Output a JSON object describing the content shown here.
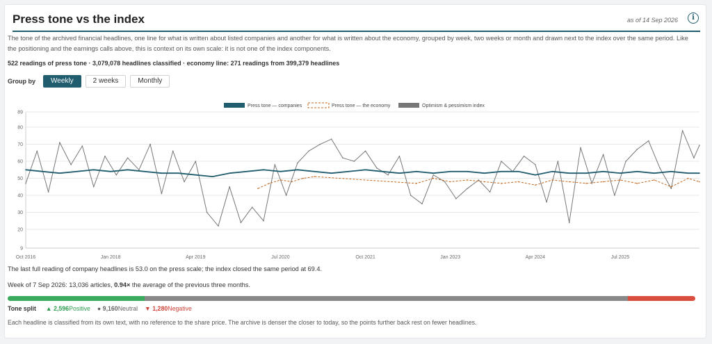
{
  "title": "Press tone vs the index",
  "as_of": "as of 14 Sep 2026",
  "description": "The tone of the archived financial headlines, one line for what is written about listed companies and another for what is written about the economy, grouped by week, two weeks or month and drawn next to the index over the same period. Like the positioning and the earnings calls above, this is context on its own scale: it is not one of the index components.",
  "stats": "522 readings of press tone · 3,079,078 headlines classified · economy line: 271 readings from 399,379 headlines",
  "group_by": {
    "label": "Group by",
    "options": [
      "Weekly",
      "2 weeks",
      "Monthly"
    ],
    "selected": "Weekly"
  },
  "summary": "The last full reading of company headlines is 53.0 on the press scale; the index closed the same period at 69.4.",
  "week": {
    "prefix": "Week of 7 Sep 2026: 13,036 articles, ",
    "ratio": "0.94×",
    "suffix": " the average of the previous three months."
  },
  "tone_split": {
    "label": "Tone split",
    "positive": {
      "icon": "triangle-up-icon",
      "count": "2,596",
      "label": "Positive",
      "value": 2596
    },
    "neutral": {
      "icon": "dot-icon",
      "count": "9,160",
      "label": "Neutral",
      "value": 9160
    },
    "negative": {
      "icon": "triangle-down-icon",
      "count": "1,280",
      "label": "Negative",
      "value": 1280
    }
  },
  "footnote": "Each headline is classified from its own text, with no reference to the share price. The archive is denser the closer to today, so the points further back rest on fewer headlines.",
  "colors": {
    "accent": "#1f5c6e",
    "companies": "#1f5c6e",
    "economy": "#c0651b",
    "index": "#777777",
    "positive": "#3aaa5c",
    "neutral": "#888888",
    "negative": "#d94d3f"
  },
  "chart_data": {
    "type": "line",
    "xlabel": "",
    "ylabel": "",
    "ylim": [
      9,
      89
    ],
    "yticks": [
      9,
      20,
      30,
      40,
      50,
      60,
      70,
      80,
      89
    ],
    "xlim": [
      "2016-10",
      "2026-09"
    ],
    "xticks": [
      {
        "label": "Oct 2016",
        "value": "2016-10"
      },
      {
        "label": "Jan 2018",
        "value": "2018-01"
      },
      {
        "label": "Apr 2019",
        "value": "2019-04"
      },
      {
        "label": "Jul 2020",
        "value": "2020-07"
      },
      {
        "label": "Oct 2021",
        "value": "2021-10"
      },
      {
        "label": "Jan 2023",
        "value": "2023-01"
      },
      {
        "label": "Apr 2024",
        "value": "2024-04"
      },
      {
        "label": "Jul 2025",
        "value": "2025-07"
      }
    ],
    "legend_position": "top-center",
    "grid": true,
    "series": [
      {
        "name": "Press tone — companies",
        "style": "solid",
        "x": [
          "2016-10",
          "2017-01",
          "2017-04",
          "2017-07",
          "2017-10",
          "2018-01",
          "2018-04",
          "2018-07",
          "2018-10",
          "2019-01",
          "2019-04",
          "2019-07",
          "2019-10",
          "2020-01",
          "2020-04",
          "2020-07",
          "2020-10",
          "2021-01",
          "2021-04",
          "2021-07",
          "2021-10",
          "2022-01",
          "2022-04",
          "2022-07",
          "2022-10",
          "2023-01",
          "2023-04",
          "2023-07",
          "2023-10",
          "2024-01",
          "2024-04",
          "2024-07",
          "2024-10",
          "2025-01",
          "2025-04",
          "2025-07",
          "2025-10",
          "2026-01",
          "2026-04",
          "2026-07",
          "2026-09"
        ],
        "y": [
          55,
          54,
          53,
          54,
          55,
          54,
          55,
          54,
          53,
          53,
          52,
          51,
          53,
          54,
          55,
          54,
          55,
          54,
          53,
          54,
          55,
          54,
          53,
          54,
          53,
          54,
          54,
          53,
          54,
          54,
          52,
          54,
          53,
          53,
          54,
          53,
          54,
          53,
          54,
          53,
          53
        ]
      },
      {
        "name": "Press tone — the economy",
        "style": "dashed",
        "x": [
          "2020-03",
          "2020-05",
          "2020-07",
          "2020-09",
          "2020-11",
          "2021-01",
          "2022-07",
          "2022-10",
          "2023-01",
          "2023-04",
          "2023-07",
          "2023-10",
          "2024-01",
          "2024-04",
          "2024-07",
          "2024-10",
          "2025-01",
          "2025-04",
          "2025-07",
          "2025-10",
          "2026-01",
          "2026-04",
          "2026-07",
          "2026-09"
        ],
        "y": [
          44,
          47,
          49,
          48,
          50,
          51,
          47,
          50,
          48,
          49,
          48,
          47,
          48,
          46,
          49,
          48,
          47,
          48,
          49,
          47,
          49,
          45,
          50,
          48
        ]
      },
      {
        "name": "Optimism & pessimism index",
        "style": "solid",
        "x": [
          "2016-10",
          "2016-12",
          "2017-02",
          "2017-04",
          "2017-06",
          "2017-08",
          "2017-10",
          "2017-12",
          "2018-02",
          "2018-04",
          "2018-06",
          "2018-08",
          "2018-10",
          "2018-12",
          "2019-02",
          "2019-04",
          "2019-06",
          "2019-08",
          "2019-10",
          "2019-12",
          "2020-02",
          "2020-04",
          "2020-06",
          "2020-08",
          "2020-10",
          "2020-12",
          "2021-02",
          "2021-04",
          "2021-06",
          "2021-08",
          "2021-10",
          "2021-12",
          "2022-02",
          "2022-04",
          "2022-06",
          "2022-08",
          "2022-10",
          "2022-12",
          "2023-02",
          "2023-04",
          "2023-06",
          "2023-08",
          "2023-10",
          "2023-12",
          "2024-02",
          "2024-04",
          "2024-06",
          "2024-08",
          "2024-10",
          "2024-12",
          "2025-02",
          "2025-04",
          "2025-06",
          "2025-08",
          "2025-10",
          "2025-12",
          "2026-02",
          "2026-04",
          "2026-06",
          "2026-08",
          "2026-09"
        ],
        "y": [
          47,
          66,
          42,
          71,
          58,
          69,
          45,
          63,
          52,
          62,
          55,
          70,
          41,
          66,
          48,
          60,
          30,
          22,
          45,
          24,
          33,
          25,
          58,
          40,
          59,
          66,
          70,
          73,
          62,
          60,
          66,
          56,
          52,
          63,
          40,
          35,
          52,
          48,
          38,
          44,
          49,
          42,
          60,
          54,
          63,
          58,
          36,
          60,
          24,
          68,
          47,
          64,
          40,
          60,
          67,
          72,
          56,
          44,
          78,
          62,
          69.4
        ]
      }
    ]
  }
}
